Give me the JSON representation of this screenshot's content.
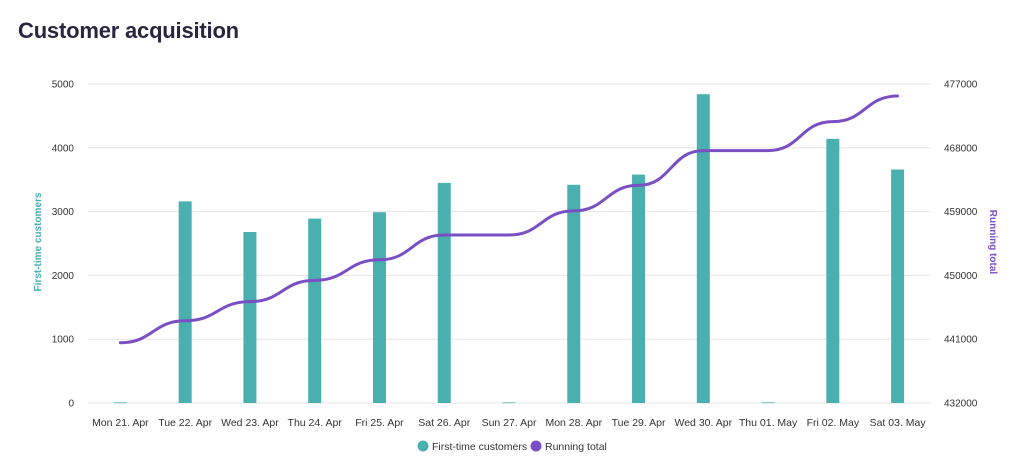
{
  "chart_data": {
    "type": "bar",
    "title": "Customer acquisition",
    "categories": [
      "Mon 21. Apr",
      "Tue 22. Apr",
      "Wed 23. Apr",
      "Thu 24. Apr",
      "Fri 25. Apr",
      "Sat 26. Apr",
      "Sun 27. Apr",
      "Mon 28. Apr",
      "Tue 29. Apr",
      "Wed 30. Apr",
      "Thu 01. May",
      "Fri 02. May",
      "Sat 03. May"
    ],
    "ylabel": "First-time customers",
    "y2label": "Running total",
    "ylim": [
      0,
      5000
    ],
    "y2lim": [
      432000,
      477000
    ],
    "yticks": [
      "0",
      "1000",
      "2000",
      "3000",
      "4000",
      "5000"
    ],
    "y2ticks": [
      "432000",
      "441000",
      "450000",
      "459000",
      "468000",
      "477000"
    ],
    "grid": true,
    "legend_position": "bottom-center",
    "series": [
      {
        "name": "First-time customers",
        "type": "bar",
        "axis": "left",
        "color": "#4aafaf",
        "values": [
          10,
          3160,
          2680,
          2890,
          2990,
          3450,
          10,
          3420,
          3580,
          4840,
          10,
          4140,
          3660
        ]
      },
      {
        "name": "Running total",
        "type": "line",
        "axis": "right",
        "color": "#7b4fc4",
        "values": [
          440500,
          443600,
          446300,
          449300,
          452200,
          455700,
          455700,
          459100,
          462700,
          467600,
          467600,
          471700,
          475300
        ]
      }
    ]
  }
}
